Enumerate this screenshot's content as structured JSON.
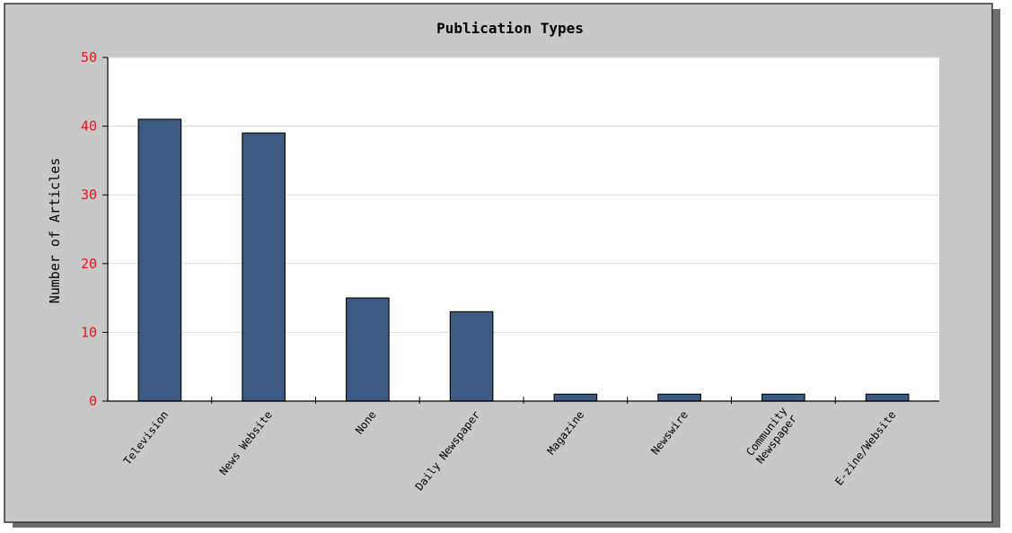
{
  "chart_data": {
    "type": "bar",
    "title": "Publication Types",
    "ylabel": "Number of Articles",
    "xlabel": "",
    "ylim": [
      0,
      50
    ],
    "yticks": [
      0,
      10,
      20,
      30,
      40,
      50
    ],
    "grid": true,
    "legend": "none",
    "categories": [
      "Television",
      "News Website",
      "None",
      "Daily Newspaper",
      "Magazine",
      "Newswire",
      "Community Newspaper",
      "E-zine/Website"
    ],
    "values": [
      41,
      39,
      15,
      13,
      1,
      1,
      1,
      1
    ],
    "colors": {
      "bar": "#3c5a82",
      "bar_outline": "#0a0a0a",
      "frame_bg": "#c8c8c8",
      "plot_bg": "#ffffff",
      "grid": "#d9d9d9",
      "ytick_label": "#e8141e",
      "text": "#000000",
      "shadow": "#6e6e6e"
    }
  }
}
